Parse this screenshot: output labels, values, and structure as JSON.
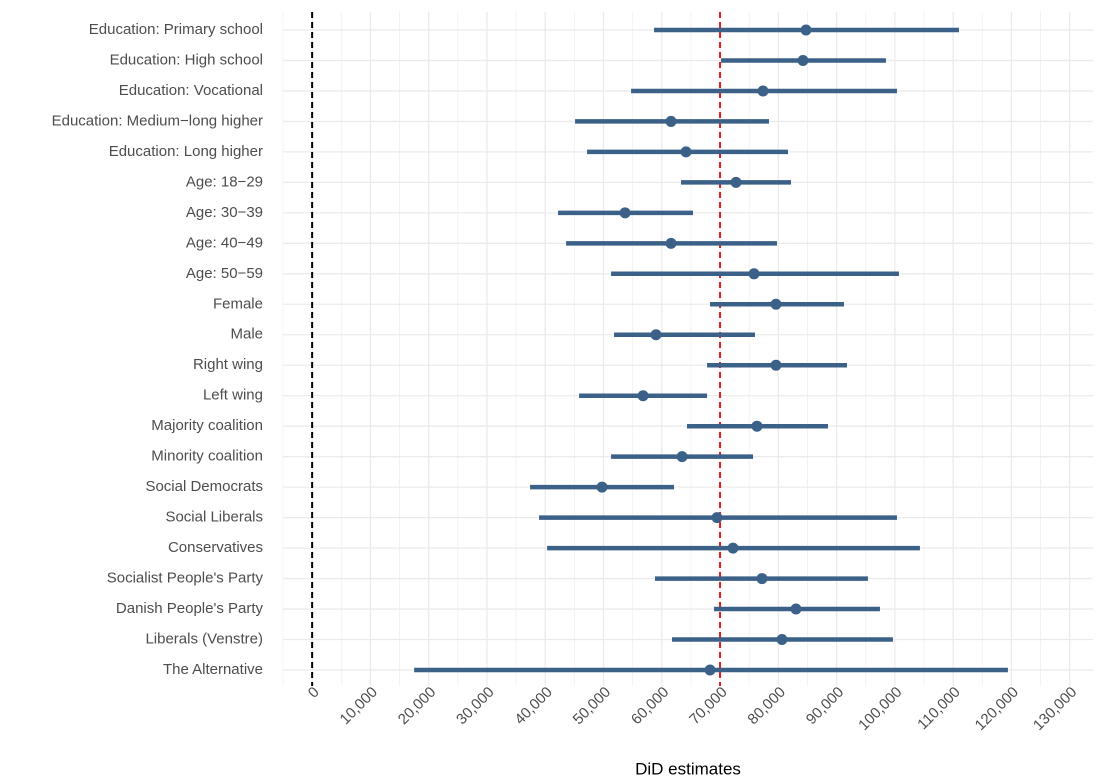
{
  "chart_data": {
    "type": "errorbar",
    "x_label": "DiD estimates",
    "categories": [
      "Education: Primary school",
      "Education: High school",
      "Education: Vocational",
      "Education: Medium−long higher",
      "Education: Long higher",
      "Age: 18−29",
      "Age: 30−39",
      "Age: 40−49",
      "Age: 50−59",
      "Female",
      "Male",
      "Right wing",
      "Left wing",
      "Majority coalition",
      "Minority coalition",
      "Social Democrats",
      "Social Liberals",
      "Conservatives",
      "Socialist People's Party",
      "Danish People's Party",
      "Liberals (Venstre)",
      "The Alternative"
    ],
    "values": [
      84750,
      84230,
      77370,
      61590,
      64160,
      72740,
      53700,
      61590,
      75830,
      79600,
      59010,
      79600,
      56790,
      76340,
      63480,
      49750,
      69480,
      72220,
      77200,
      83030,
      80630,
      68280
    ],
    "lower": [
      58670,
      70170,
      54730,
      45120,
      47180,
      63300,
      42200,
      43580,
      51300,
      68280,
      51810,
      67770,
      45810,
      64330,
      51300,
      37400,
      38940,
      40320,
      58840,
      68970,
      61760,
      17500
    ],
    "upper": [
      111000,
      98470,
      100360,
      78400,
      81660,
      82180,
      65360,
      79770,
      100700,
      91270,
      76000,
      91780,
      67770,
      88520,
      75660,
      62100,
      100360,
      104300,
      95380,
      97440,
      99670,
      119400
    ],
    "color": "#3b6188",
    "reference_lines": [
      {
        "value": 0,
        "color": "#000000"
      },
      {
        "value": 70000,
        "color": "#e41a1c"
      }
    ],
    "xlim": [
      -5000,
      134000
    ],
    "xticks": [
      0,
      {
        "value": 10000,
        "label": "10,000"
      },
      {
        "value": 20000,
        "label": "20,000"
      },
      {
        "value": 30000,
        "label": "30,000"
      },
      {
        "value": 40000,
        "label": "40,000"
      },
      {
        "value": 50000,
        "label": "50,000"
      },
      {
        "value": 60000,
        "label": "60,000"
      },
      {
        "value": 70000,
        "label": "70,000"
      },
      {
        "value": 80000,
        "label": "80,000"
      },
      {
        "value": 90000,
        "label": "90,000"
      },
      {
        "value": 100000,
        "label": "100,000"
      },
      {
        "value": 110000,
        "label": "110,000"
      },
      {
        "value": 120000,
        "label": "120,000"
      },
      {
        "value": 130000,
        "label": "130,000"
      }
    ],
    "grid": true
  }
}
